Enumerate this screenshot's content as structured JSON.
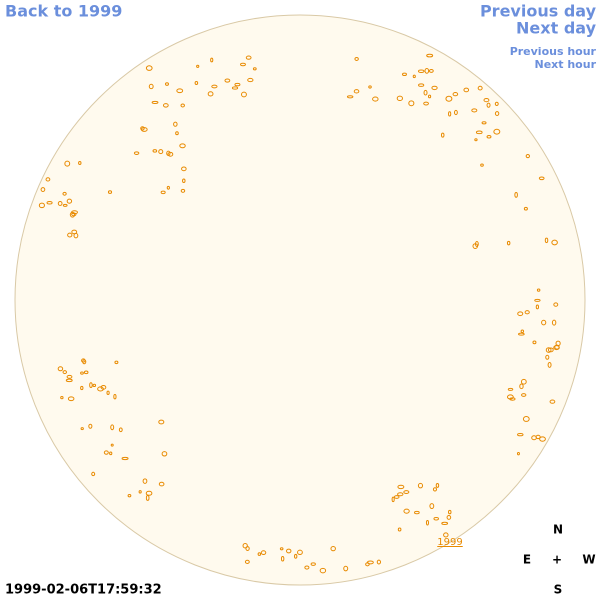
{
  "nav": {
    "back": "Back to 1999",
    "previous_day": "Previous day",
    "next_day": "Next day",
    "previous_hour": "Previous hour",
    "next_hour": "Next hour"
  },
  "timestamp": "1999-02-06T17:59:32",
  "region_label": "1999",
  "compass": {
    "north": "N",
    "east": "E",
    "center": "+",
    "west": "W",
    "south": "S"
  }
}
